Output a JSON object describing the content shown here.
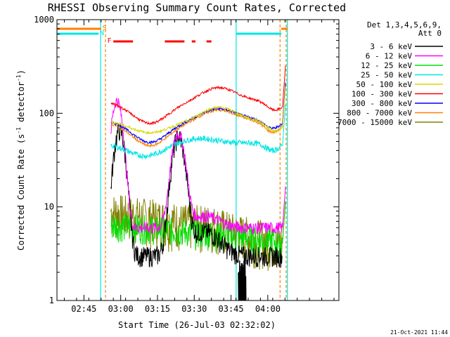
{
  "chart_data": {
    "type": "line",
    "title": "RHESSI Observing Summary Count Rates, Corrected",
    "xlabel": "Start Time (26-Jul-03 02:32:02)",
    "ylabel": "Corrected Count Rate (s",
    "ylabel_sup1": "-1",
    "ylabel_mid": " detector",
    "ylabel_sup2": "-1",
    "ylabel_end": ")",
    "y_scale": "log",
    "ylim": [
      1,
      1000
    ],
    "xlim_minutes": [
      2.0,
      117.0
    ],
    "x_ticks": [
      {
        "m": 13,
        "label": "02:45"
      },
      {
        "m": 28,
        "label": "03:00"
      },
      {
        "m": 43,
        "label": "03:15"
      },
      {
        "m": 58,
        "label": "03:30"
      },
      {
        "m": 73,
        "label": "03:45"
      },
      {
        "m": 88,
        "label": "04:00"
      }
    ],
    "y_ticks": [
      {
        "v": 1,
        "label": "1"
      },
      {
        "v": 10,
        "label": "10"
      },
      {
        "v": 100,
        "label": "100"
      },
      {
        "v": 1000,
        "label": "1000"
      }
    ],
    "legend_header": [
      "Det 1,3,4,5,6,9,",
      "Att 0"
    ],
    "series": [
      {
        "name": "3 - 6 keV",
        "color": "#000000"
      },
      {
        "name": "6 - 12 keV",
        "color": "#ff00ff"
      },
      {
        "name": "12 - 25 keV",
        "color": "#00e000"
      },
      {
        "name": "25 - 50 keV",
        "color": "#00e5e5"
      },
      {
        "name": "50 - 100 keV",
        "color": "#d8d800"
      },
      {
        "name": "100 - 300 keV",
        "color": "#ff0000"
      },
      {
        "name": "300 - 800 keV",
        "color": "#0000ff"
      },
      {
        "name": "800 - 7000 keV",
        "color": "#ff8000"
      },
      {
        "name": "7000 - 15000 keV",
        "color": "#808000"
      }
    ],
    "flags": [
      {
        "letter": "S",
        "color": "#ff8000",
        "segments": [
          [
            2,
            20
          ],
          [
            93.5,
            96
          ]
        ]
      },
      {
        "letter": "N",
        "color": "#00e5e5",
        "segments": [
          [
            2,
            19
          ],
          [
            75,
            93.5
          ]
        ]
      },
      {
        "letter": "F",
        "color": "#ff0000",
        "segments": [
          [
            25,
            33
          ],
          [
            46,
            54
          ],
          [
            57,
            58.5
          ],
          [
            63,
            65
          ]
        ]
      }
    ],
    "saa_lines_minutes": [
      19.8,
      75.1,
      96.0
    ],
    "night_lines_minutes": [
      21.8,
      93.0,
      95.5
    ],
    "footer_date": "21-Oct-2021 11:44"
  }
}
